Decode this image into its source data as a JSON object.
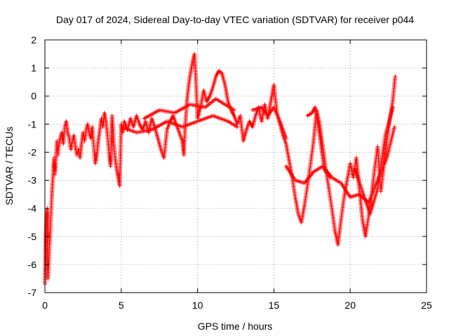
{
  "chart_data": {
    "type": "scatter",
    "title": "Day 017 of 2024, Sidereal Day-to-day VTEC variation (SDTVAR) for receiver p044",
    "xlabel": "GPS time / hours",
    "ylabel": "SDTVAR / TECUs",
    "xlim": [
      0,
      25
    ],
    "ylim": [
      -7,
      2
    ],
    "xticks": [
      "0",
      "5",
      "10",
      "15",
      "20",
      "25"
    ],
    "yticks": [
      "2",
      "1",
      "0",
      "-1",
      "-2",
      "-3",
      "-4",
      "-5",
      "-6",
      "-7"
    ],
    "grid": true,
    "marker": "+",
    "color": "#ff0000",
    "series": [
      {
        "name": "SDTVAR",
        "trace": [
          [
            0.0,
            -6.7
          ],
          [
            0.05,
            -5.0
          ],
          [
            0.1,
            -4.4
          ],
          [
            0.15,
            -4.0
          ],
          [
            0.2,
            -6.5
          ],
          [
            0.25,
            -5.9
          ],
          [
            0.3,
            -5.3
          ],
          [
            0.35,
            -4.8
          ],
          [
            0.4,
            -4.2
          ],
          [
            0.45,
            -3.6
          ],
          [
            0.5,
            -3.1
          ],
          [
            0.55,
            -2.7
          ],
          [
            0.6,
            -2.2
          ],
          [
            0.65,
            -2.8
          ],
          [
            0.7,
            -2.4
          ],
          [
            0.75,
            -2.0
          ],
          [
            0.8,
            -1.6
          ],
          [
            0.85,
            -2.1
          ],
          [
            0.9,
            -1.8
          ],
          [
            1.0,
            -1.5
          ],
          [
            1.1,
            -1.3
          ],
          [
            1.2,
            -1.7
          ],
          [
            1.3,
            -1.1
          ],
          [
            1.4,
            -0.9
          ],
          [
            1.5,
            -1.3
          ],
          [
            1.6,
            -1.5
          ],
          [
            1.7,
            -1.9
          ],
          [
            1.8,
            -1.6
          ],
          [
            1.9,
            -1.4
          ],
          [
            2.0,
            -1.8
          ],
          [
            2.1,
            -2.1
          ],
          [
            2.2,
            -1.9
          ],
          [
            2.3,
            -2.2
          ],
          [
            2.4,
            -1.7
          ],
          [
            2.5,
            -1.3
          ],
          [
            2.6,
            -1.6
          ],
          [
            2.7,
            -1.2
          ],
          [
            2.8,
            -1.0
          ],
          [
            2.9,
            -1.3
          ],
          [
            3.0,
            -1.5
          ],
          [
            3.1,
            -1.1
          ],
          [
            3.2,
            -1.8
          ],
          [
            3.3,
            -2.4
          ],
          [
            3.4,
            -2.1
          ],
          [
            3.5,
            -1.6
          ],
          [
            3.6,
            -1.2
          ],
          [
            3.7,
            -0.8
          ],
          [
            3.8,
            -1.1
          ],
          [
            3.9,
            -0.6
          ],
          [
            4.0,
            -0.9
          ],
          [
            4.1,
            -1.4
          ],
          [
            4.2,
            -2.0
          ],
          [
            4.3,
            -2.5
          ],
          [
            4.4,
            -0.7
          ],
          [
            4.5,
            -1.6
          ],
          [
            4.6,
            -2.2
          ],
          [
            4.7,
            -2.6
          ],
          [
            4.8,
            -2.9
          ],
          [
            4.9,
            -3.2
          ],
          [
            5.0,
            -1.0
          ],
          [
            5.1,
            -1.3
          ],
          [
            5.2,
            -0.9
          ],
          [
            5.4,
            -1.2
          ],
          [
            5.6,
            -0.8
          ],
          [
            5.8,
            -1.1
          ],
          [
            6.0,
            -0.7
          ],
          [
            6.2,
            -1.0
          ],
          [
            6.4,
            -1.2
          ],
          [
            6.6,
            -0.9
          ],
          [
            6.8,
            -1.3
          ],
          [
            7.0,
            -0.8
          ],
          [
            7.2,
            -1.1
          ],
          [
            7.4,
            -1.5
          ],
          [
            7.6,
            -1.9
          ],
          [
            7.8,
            -2.2
          ],
          [
            8.0,
            -1.2
          ],
          [
            8.2,
            -0.9
          ],
          [
            8.4,
            -0.7
          ],
          [
            8.6,
            -1.0
          ],
          [
            8.8,
            -1.3
          ],
          [
            9.0,
            -1.6
          ],
          [
            9.1,
            -2.1
          ],
          [
            9.2,
            -1.0
          ],
          [
            9.3,
            -0.2
          ],
          [
            9.4,
            0.3
          ],
          [
            9.5,
            0.7
          ],
          [
            9.6,
            1.0
          ],
          [
            9.7,
            1.3
          ],
          [
            9.8,
            1.5
          ],
          [
            9.9,
            0.5
          ],
          [
            10.0,
            -0.8
          ],
          [
            10.2,
            -0.4
          ],
          [
            10.4,
            0.2
          ],
          [
            10.6,
            -0.2
          ],
          [
            10.8,
            0.0
          ],
          [
            11.0,
            0.3
          ],
          [
            11.2,
            0.7
          ],
          [
            11.4,
            0.9
          ],
          [
            11.6,
            0.8
          ],
          [
            11.8,
            0.4
          ],
          [
            12.0,
            -0.2
          ],
          [
            12.2,
            -0.5
          ],
          [
            12.4,
            -0.7
          ],
          [
            12.6,
            -1.0
          ],
          [
            12.8,
            -0.7
          ],
          [
            13.0,
            -1.6
          ],
          [
            13.2,
            -1.2
          ],
          [
            13.4,
            -0.9
          ],
          [
            13.6,
            -1.1
          ],
          [
            13.8,
            -0.7
          ],
          [
            14.0,
            -0.4
          ],
          [
            14.2,
            -0.9
          ],
          [
            14.4,
            -0.3
          ],
          [
            14.6,
            -0.8
          ],
          [
            14.8,
            -0.2
          ],
          [
            15.0,
            0.4
          ],
          [
            15.2,
            -0.6
          ],
          [
            15.4,
            -1.0
          ],
          [
            15.6,
            -1.4
          ],
          [
            15.8,
            -1.7
          ],
          [
            16.0,
            -2.3
          ],
          [
            16.2,
            -2.9
          ],
          [
            16.4,
            -3.6
          ],
          [
            16.6,
            -4.2
          ],
          [
            16.8,
            -4.5
          ],
          [
            17.0,
            -3.9
          ],
          [
            17.2,
            -3.2
          ],
          [
            17.4,
            -2.4
          ],
          [
            17.6,
            -1.6
          ],
          [
            17.8,
            -0.5
          ],
          [
            18.0,
            -1.0
          ],
          [
            18.2,
            -1.8
          ],
          [
            18.4,
            -2.6
          ],
          [
            18.6,
            -3.3
          ],
          [
            18.8,
            -4.0
          ],
          [
            19.0,
            -4.8
          ],
          [
            19.2,
            -5.3
          ],
          [
            19.4,
            -4.4
          ],
          [
            19.6,
            -3.6
          ],
          [
            19.8,
            -3.0
          ],
          [
            20.0,
            -2.4
          ],
          [
            20.2,
            -2.9
          ],
          [
            20.4,
            -2.2
          ],
          [
            20.6,
            -3.3
          ],
          [
            20.8,
            -4.4
          ],
          [
            21.0,
            -5.0
          ],
          [
            21.2,
            -4.3
          ],
          [
            21.4,
            -3.5
          ],
          [
            21.6,
            -2.6
          ],
          [
            21.8,
            -1.8
          ],
          [
            22.0,
            -3.4
          ],
          [
            22.2,
            -2.5
          ],
          [
            22.4,
            -1.6
          ],
          [
            22.6,
            -0.8
          ],
          [
            22.8,
            -0.1
          ],
          [
            22.95,
            0.7
          ]
        ],
        "extra_segments": [
          [
            [
              5.0,
              -1.1
            ],
            [
              6.0,
              -1.3
            ],
            [
              7.0,
              -1.2
            ],
            [
              8.0,
              -0.9
            ],
            [
              9.0,
              -1.1
            ],
            [
              10.0,
              -0.9
            ],
            [
              11.0,
              -0.7
            ],
            [
              12.0,
              -0.9
            ],
            [
              12.6,
              -1.1
            ]
          ],
          [
            [
              6.5,
              -0.8
            ],
            [
              7.5,
              -0.5
            ],
            [
              8.5,
              -0.6
            ],
            [
              9.5,
              -0.3
            ],
            [
              10.5,
              -0.4
            ],
            [
              11.2,
              -0.1
            ],
            [
              11.8,
              -0.3
            ],
            [
              12.4,
              -0.5
            ]
          ],
          [
            [
              15.8,
              -2.5
            ],
            [
              16.4,
              -3.0
            ],
            [
              17.0,
              -3.1
            ],
            [
              17.6,
              -2.7
            ],
            [
              18.2,
              -2.5
            ],
            [
              18.8,
              -2.9
            ],
            [
              19.4,
              -3.1
            ],
            [
              20.0,
              -3.6
            ],
            [
              20.6,
              -3.5
            ],
            [
              21.2,
              -3.8
            ],
            [
              21.8,
              -3.0
            ],
            [
              22.4,
              -2.2
            ],
            [
              22.9,
              -1.1
            ]
          ],
          [
            [
              20.3,
              -2.6
            ],
            [
              20.8,
              -3.4
            ],
            [
              21.3,
              -4.2
            ],
            [
              21.8,
              -3.3
            ],
            [
              22.3,
              -1.4
            ],
            [
              22.8,
              -0.4
            ]
          ],
          [
            [
              13.6,
              -0.5
            ],
            [
              14.2,
              -0.4
            ],
            [
              14.6,
              -0.7
            ],
            [
              15.0,
              -0.4
            ],
            [
              15.4,
              -0.9
            ],
            [
              15.8,
              -1.5
            ]
          ],
          [
            [
              17.2,
              -0.7
            ],
            [
              17.5,
              -0.6
            ],
            [
              17.7,
              -0.4
            ],
            [
              18.0,
              -1.4
            ],
            [
              18.3,
              -2.6
            ],
            [
              18.7,
              -2.9
            ]
          ]
        ]
      }
    ]
  }
}
